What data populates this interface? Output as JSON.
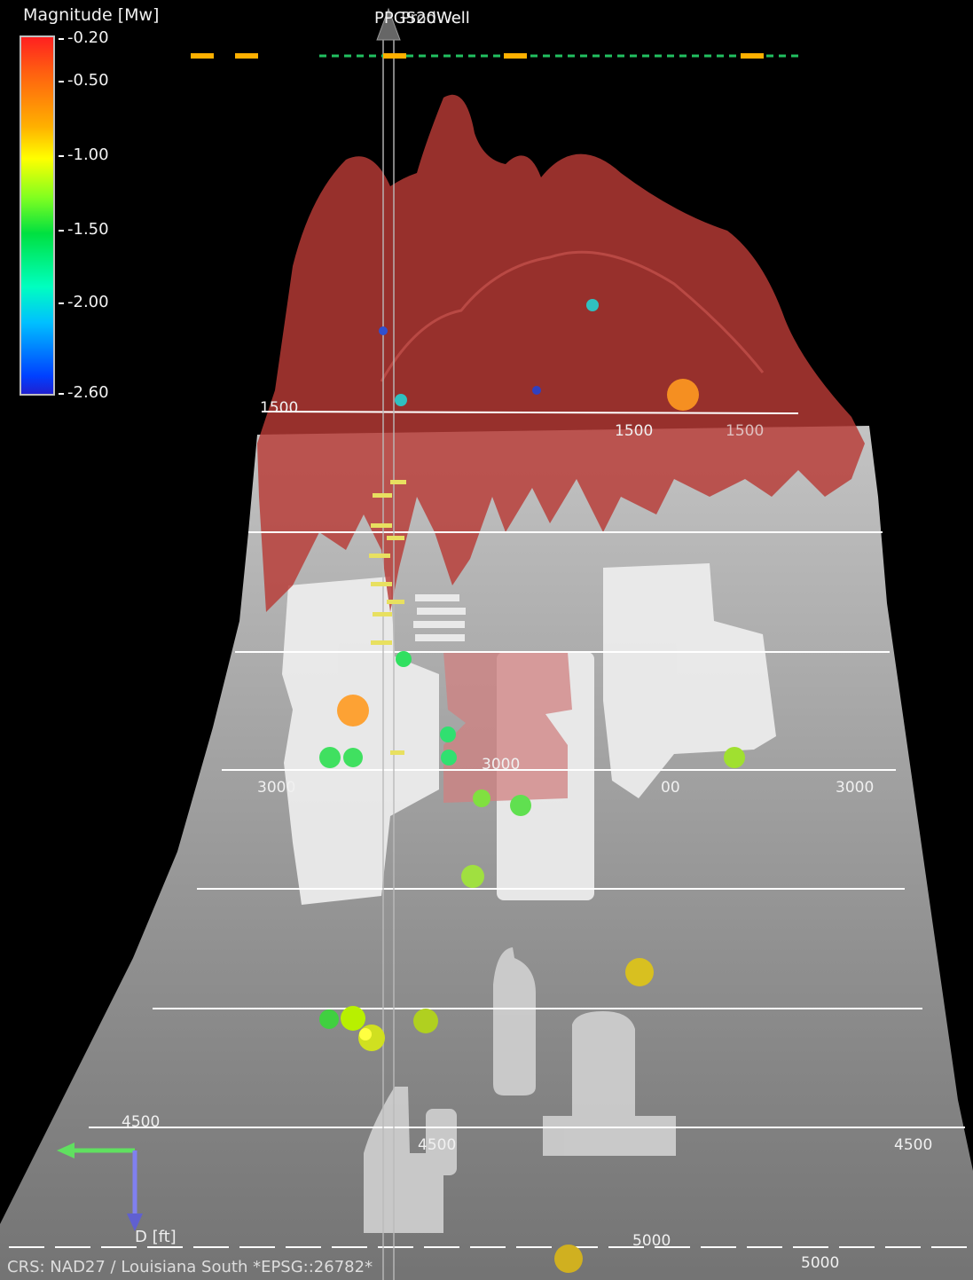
{
  "legend": {
    "title": "Magnitude [Mw]",
    "ticks": [
      "-0.20",
      "-0.50",
      "-1.00",
      "-1.50",
      "-2.00",
      "-2.60"
    ]
  },
  "wells": {
    "label_a": "PPGS20Well",
    "label_b": "ProdWell"
  },
  "depth_labels": {
    "d1500_left": "1500",
    "d1500_mid": "1500",
    "d1500_right": "1500",
    "d3000_left": "3000",
    "d3000_mid": "3000",
    "d3000_right": "3000",
    "d3000_partial": "00",
    "d4500_left": "4500",
    "d4500_mid": "4500",
    "d4500_right": "4500",
    "d5000_mid": "5000",
    "d5000_right": "5000"
  },
  "axes": {
    "d_label": "D [ft]"
  },
  "status": {
    "crs": "CRS: NAD27 / Louisiana South *EPSG::26782*"
  },
  "colors": {
    "stimulated_volume": "#b83a36",
    "salt_surface": "#d8d8d8",
    "background": "#000000"
  }
}
